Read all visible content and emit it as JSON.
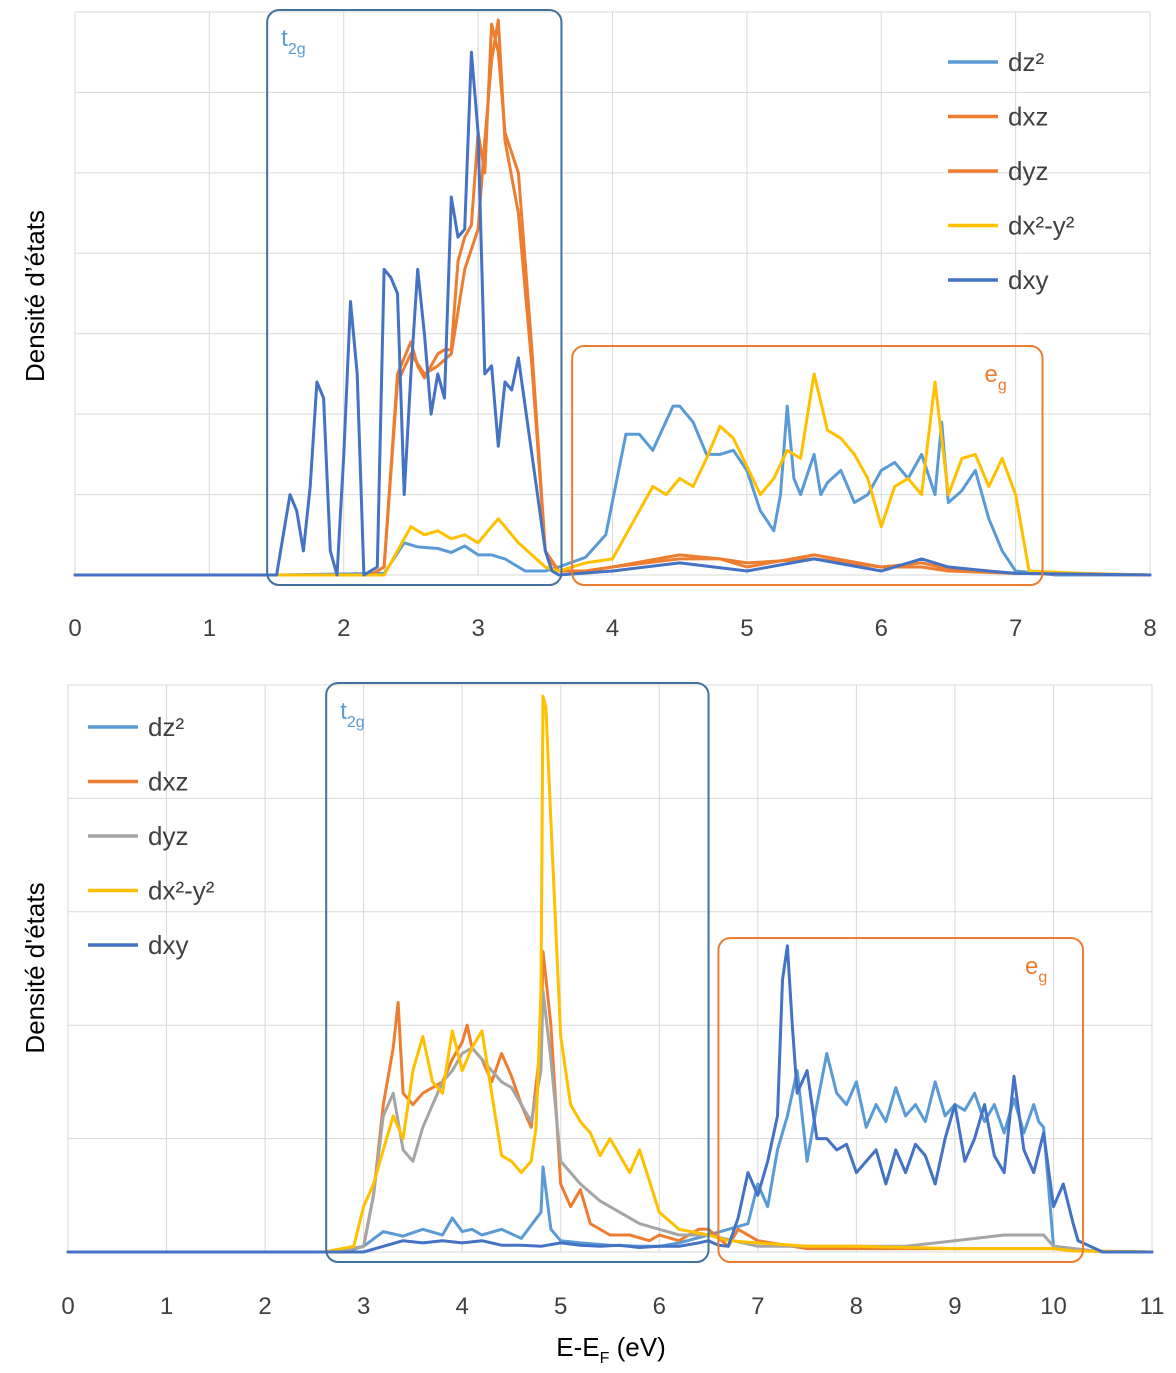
{
  "colors": {
    "dz2": "#5B9BD5",
    "dxz": "#ED7D31",
    "dyz_top": "#ED7D31",
    "dyz_bottom": "#A5A5A5",
    "dx2y2": "#FFC000",
    "dxy": "#4472C4",
    "box_t2g": "#41719C",
    "box_eg": "#ED7D31",
    "grid": "#D9D9D9"
  },
  "xlabel_main": "E-E",
  "xlabel_sub": "F",
  "xlabel_unit": " (eV)",
  "chart_data": [
    {
      "type": "line",
      "ylabel": "Densité d’états",
      "xlim": [
        0,
        8
      ],
      "x_ticks": [
        "0",
        "1",
        "2",
        "3",
        "4",
        "5",
        "6",
        "7",
        "8"
      ],
      "ylim": [
        0,
        7
      ],
      "y_gridlines": 7,
      "y_tick_labels": "none",
      "grid": "on",
      "legend_position": "top-right",
      "boxes": [
        {
          "label": "t",
          "sub": "2g",
          "x_range": [
            1.43,
            3.62
          ],
          "label_position": "top-left",
          "color": "box_t2g"
        },
        {
          "label": "e",
          "sub": "g",
          "x_range": [
            3.7,
            7.2
          ],
          "label_position": "top-right",
          "color": "box_eg"
        }
      ],
      "series": [
        {
          "name": "dz²",
          "color": "dz2",
          "x": [
            0,
            1.5,
            2.3,
            2.45,
            2.55,
            2.7,
            2.8,
            2.9,
            3.0,
            3.1,
            3.2,
            3.35,
            3.5,
            3.6,
            3.8,
            3.95,
            4.1,
            4.2,
            4.3,
            4.45,
            4.5,
            4.6,
            4.7,
            4.8,
            4.9,
            5.0,
            5.1,
            5.2,
            5.25,
            5.3,
            5.35,
            5.4,
            5.45,
            5.5,
            5.55,
            5.6,
            5.7,
            5.8,
            5.9,
            6.0,
            6.1,
            6.2,
            6.3,
            6.4,
            6.45,
            6.5,
            6.6,
            6.7,
            6.8,
            6.9,
            7.0,
            7.3,
            8
          ],
          "y": [
            0,
            0,
            0.02,
            0.4,
            0.35,
            0.33,
            0.28,
            0.36,
            0.25,
            0.25,
            0.2,
            0.05,
            0.05,
            0.1,
            0.22,
            0.5,
            1.75,
            1.75,
            1.55,
            2.1,
            2.1,
            1.9,
            1.5,
            1.5,
            1.55,
            1.3,
            0.8,
            0.55,
            1.0,
            2.1,
            1.2,
            1.0,
            1.25,
            1.5,
            1.0,
            1.15,
            1.3,
            0.9,
            1.0,
            1.3,
            1.4,
            1.2,
            1.5,
            1.0,
            1.9,
            0.9,
            1.05,
            1.3,
            0.7,
            0.3,
            0.05,
            0,
            0
          ]
        },
        {
          "name": "dxz",
          "color": "dxz",
          "x": [
            0,
            2.2,
            2.3,
            2.4,
            2.5,
            2.55,
            2.6,
            2.7,
            2.75,
            2.8,
            2.85,
            2.9,
            2.95,
            3.0,
            3.05,
            3.1,
            3.15,
            3.2,
            3.3,
            3.4,
            3.5,
            3.55,
            3.6,
            3.8,
            4.0,
            4.5,
            4.8,
            5.0,
            5.5,
            6.0,
            6.3,
            6.5,
            7.0,
            8
          ],
          "y": [
            0,
            0,
            0.1,
            2.5,
            2.9,
            2.6,
            2.45,
            2.75,
            2.8,
            2.8,
            3.9,
            4.2,
            4.35,
            5.5,
            5.0,
            6.85,
            6.5,
            5.5,
            5.0,
            2.8,
            0.3,
            0.15,
            0.05,
            0.05,
            0.1,
            0.25,
            0.2,
            0.15,
            0.2,
            0.1,
            0.15,
            0.08,
            0.02,
            0
          ]
        },
        {
          "name": "dyz",
          "color": "dyz_top",
          "x": [
            0,
            2.2,
            2.3,
            2.4,
            2.5,
            2.6,
            2.7,
            2.8,
            2.9,
            3.0,
            3.05,
            3.1,
            3.15,
            3.2,
            3.3,
            3.4,
            3.5,
            3.6,
            3.8,
            4.0,
            4.5,
            4.8,
            5.0,
            5.5,
            6.0,
            6.3,
            6.5,
            7.0,
            8
          ],
          "y": [
            0,
            0,
            0.1,
            2.4,
            2.75,
            2.5,
            2.6,
            2.75,
            3.8,
            4.3,
            5.4,
            6.4,
            6.9,
            5.4,
            4.5,
            2.6,
            0.3,
            0.05,
            0.05,
            0.1,
            0.2,
            0.2,
            0.1,
            0.25,
            0.1,
            0.1,
            0.05,
            0.02,
            0
          ]
        },
        {
          "name": "dx²-y²",
          "color": "dx2y2",
          "x": [
            0,
            2.3,
            2.4,
            2.5,
            2.6,
            2.7,
            2.8,
            2.9,
            3.0,
            3.1,
            3.15,
            3.2,
            3.3,
            3.5,
            3.6,
            3.8,
            4.0,
            4.2,
            4.3,
            4.4,
            4.5,
            4.6,
            4.7,
            4.8,
            4.9,
            5.0,
            5.1,
            5.2,
            5.3,
            5.4,
            5.5,
            5.6,
            5.7,
            5.8,
            5.9,
            6.0,
            6.1,
            6.2,
            6.3,
            6.4,
            6.5,
            6.6,
            6.7,
            6.8,
            6.9,
            7.0,
            7.1,
            7.5,
            8
          ],
          "y": [
            0,
            0,
            0.3,
            0.6,
            0.5,
            0.55,
            0.45,
            0.5,
            0.4,
            0.6,
            0.7,
            0.6,
            0.4,
            0.1,
            0.05,
            0.15,
            0.2,
            0.8,
            1.1,
            1.0,
            1.2,
            1.1,
            1.45,
            1.85,
            1.7,
            1.35,
            1.0,
            1.2,
            1.55,
            1.45,
            2.5,
            1.8,
            1.7,
            1.5,
            1.2,
            0.6,
            1.1,
            1.2,
            1.0,
            2.4,
            1.0,
            1.45,
            1.5,
            1.1,
            1.45,
            1.0,
            0.05,
            0.02,
            0
          ]
        },
        {
          "name": "dxy",
          "color": "dxy",
          "x": [
            0,
            1.5,
            1.55,
            1.6,
            1.65,
            1.7,
            1.75,
            1.8,
            1.85,
            1.9,
            1.95,
            2.0,
            2.05,
            2.1,
            2.15,
            2.2,
            2.25,
            2.3,
            2.35,
            2.4,
            2.45,
            2.5,
            2.55,
            2.6,
            2.65,
            2.7,
            2.75,
            2.8,
            2.85,
            2.9,
            2.95,
            3.0,
            3.05,
            3.1,
            3.15,
            3.2,
            3.25,
            3.3,
            3.4,
            3.5,
            3.55,
            3.6,
            4.0,
            4.5,
            5.0,
            5.5,
            6.0,
            6.3,
            6.5,
            6.8,
            7.0,
            8
          ],
          "y": [
            0,
            0,
            0.5,
            1.0,
            0.8,
            0.3,
            1.1,
            2.4,
            2.2,
            0.3,
            0.0,
            1.5,
            3.4,
            2.5,
            0.0,
            0.05,
            0.1,
            3.8,
            3.7,
            3.5,
            1.0,
            2.5,
            3.8,
            3.0,
            2.0,
            2.5,
            2.2,
            4.7,
            4.2,
            4.3,
            6.5,
            5.5,
            2.5,
            2.6,
            1.6,
            2.4,
            2.3,
            2.7,
            1.5,
            0.3,
            0.05,
            0.0,
            0.05,
            0.15,
            0.05,
            0.2,
            0.05,
            0.2,
            0.1,
            0.05,
            0.02,
            0
          ]
        }
      ]
    },
    {
      "type": "line",
      "ylabel": "Densité d'états",
      "xlim": [
        0,
        11
      ],
      "x_ticks": [
        "0",
        "1",
        "2",
        "3",
        "4",
        "5",
        "6",
        "7",
        "8",
        "9",
        "10",
        "11"
      ],
      "ylim": [
        0,
        5
      ],
      "y_gridlines": 5,
      "y_tick_labels": "none",
      "grid": "on",
      "legend_position": "top-left",
      "boxes": [
        {
          "label": "t",
          "sub": "2g",
          "x_range": [
            2.62,
            6.5
          ],
          "label_position": "top-left",
          "color": "box_t2g"
        },
        {
          "label": "e",
          "sub": "g",
          "x_range": [
            6.6,
            10.3
          ],
          "label_position": "top-right",
          "color": "box_eg"
        }
      ],
      "series": [
        {
          "name": "dz²",
          "color": "dz2",
          "x": [
            0,
            2.8,
            3.0,
            3.2,
            3.4,
            3.6,
            3.8,
            3.9,
            4.0,
            4.1,
            4.2,
            4.4,
            4.6,
            4.8,
            4.82,
            4.9,
            5.0,
            5.2,
            5.5,
            5.8,
            6.0,
            6.2,
            6.5,
            6.7,
            6.9,
            7.0,
            7.1,
            7.2,
            7.3,
            7.4,
            7.5,
            7.6,
            7.7,
            7.8,
            7.9,
            8.0,
            8.1,
            8.2,
            8.3,
            8.4,
            8.5,
            8.6,
            8.7,
            8.8,
            8.9,
            9.0,
            9.1,
            9.2,
            9.3,
            9.4,
            9.5,
            9.6,
            9.7,
            9.8,
            9.85,
            9.9,
            10.0,
            10.5,
            11
          ],
          "y": [
            0,
            0,
            0.05,
            0.18,
            0.14,
            0.2,
            0.15,
            0.3,
            0.18,
            0.2,
            0.15,
            0.2,
            0.12,
            0.35,
            0.75,
            0.2,
            0.1,
            0.08,
            0.06,
            0.05,
            0.05,
            0.08,
            0.15,
            0.2,
            0.25,
            0.6,
            0.4,
            0.9,
            1.2,
            1.6,
            0.8,
            1.3,
            1.75,
            1.4,
            1.3,
            1.5,
            1.1,
            1.3,
            1.15,
            1.45,
            1.2,
            1.3,
            1.15,
            1.5,
            1.2,
            1.3,
            1.25,
            1.4,
            1.15,
            1.3,
            1.05,
            1.35,
            1.05,
            1.3,
            1.15,
            1.1,
            0.05,
            0,
            0
          ]
        },
        {
          "name": "dxz",
          "color": "dxz",
          "x": [
            0,
            2.7,
            3.0,
            3.1,
            3.2,
            3.3,
            3.35,
            3.4,
            3.5,
            3.6,
            3.7,
            3.8,
            3.9,
            4.0,
            4.05,
            4.1,
            4.2,
            4.3,
            4.4,
            4.5,
            4.6,
            4.7,
            4.8,
            4.82,
            4.9,
            5.0,
            5.1,
            5.2,
            5.3,
            5.5,
            5.7,
            5.9,
            6.0,
            6.2,
            6.4,
            6.5,
            6.7,
            6.8,
            7.0,
            7.5,
            8.0,
            9.0,
            10.0,
            10.2,
            11
          ],
          "y": [
            0,
            0,
            0.05,
            0.5,
            1.3,
            1.8,
            2.2,
            1.4,
            1.3,
            1.4,
            1.45,
            1.5,
            1.7,
            1.85,
            2.0,
            1.8,
            1.7,
            1.5,
            1.75,
            1.55,
            1.3,
            1.1,
            1.85,
            2.65,
            2.0,
            0.6,
            0.4,
            0.55,
            0.25,
            0.15,
            0.15,
            0.1,
            0.15,
            0.1,
            0.2,
            0.2,
            0.05,
            0.2,
            0.1,
            0.03,
            0.03,
            0.03,
            0.03,
            0.01,
            0
          ]
        },
        {
          "name": "dyz",
          "color": "dyz_bottom",
          "x": [
            0,
            2.7,
            3.0,
            3.1,
            3.2,
            3.3,
            3.4,
            3.5,
            3.6,
            3.7,
            3.8,
            3.9,
            4.0,
            4.1,
            4.2,
            4.3,
            4.4,
            4.5,
            4.6,
            4.7,
            4.8,
            4.82,
            4.9,
            5.0,
            5.1,
            5.2,
            5.4,
            5.6,
            5.8,
            6.0,
            6.2,
            6.5,
            7.0,
            7.5,
            8.0,
            8.5,
            9.0,
            9.5,
            9.8,
            9.9,
            10.0,
            10.5,
            11
          ],
          "y": [
            0,
            0,
            0.05,
            0.5,
            1.2,
            1.4,
            0.9,
            0.8,
            1.1,
            1.3,
            1.5,
            1.6,
            1.75,
            1.8,
            1.7,
            1.6,
            1.5,
            1.45,
            1.3,
            1.15,
            1.6,
            2.3,
            1.7,
            0.8,
            0.7,
            0.6,
            0.45,
            0.35,
            0.25,
            0.2,
            0.15,
            0.15,
            0.05,
            0.05,
            0.05,
            0.05,
            0.1,
            0.15,
            0.15,
            0.15,
            0.05,
            0.0,
            0
          ]
        },
        {
          "name": "dx²-y²",
          "color": "dx2y2",
          "x": [
            0,
            2.6,
            2.9,
            3.0,
            3.1,
            3.2,
            3.3,
            3.4,
            3.5,
            3.6,
            3.7,
            3.8,
            3.9,
            4.0,
            4.1,
            4.2,
            4.3,
            4.4,
            4.5,
            4.6,
            4.7,
            4.75,
            4.8,
            4.82,
            4.85,
            4.9,
            5.0,
            5.1,
            5.2,
            5.3,
            5.4,
            5.5,
            5.6,
            5.7,
            5.8,
            6.0,
            6.2,
            6.5,
            6.7,
            7.0,
            7.5,
            8.0,
            9.0,
            10.0,
            10.2,
            11
          ],
          "y": [
            0,
            0,
            0.05,
            0.4,
            0.6,
            0.9,
            1.2,
            1.0,
            1.6,
            1.9,
            1.5,
            1.4,
            1.95,
            1.6,
            1.8,
            1.95,
            1.4,
            0.85,
            0.8,
            0.7,
            0.8,
            1.1,
            2.3,
            4.9,
            4.8,
            3.8,
            1.9,
            1.3,
            1.15,
            1.05,
            0.85,
            1.0,
            0.85,
            0.7,
            0.9,
            0.35,
            0.2,
            0.15,
            0.1,
            0.08,
            0.05,
            0.05,
            0.03,
            0.03,
            0.01,
            0
          ]
        },
        {
          "name": "dxy",
          "color": "dxy",
          "x": [
            0,
            3.0,
            3.2,
            3.4,
            3.6,
            3.8,
            4.0,
            4.2,
            4.4,
            4.6,
            4.8,
            5.0,
            5.2,
            5.4,
            5.6,
            5.8,
            6.0,
            6.2,
            6.4,
            6.5,
            6.6,
            6.7,
            6.8,
            6.9,
            7.0,
            7.1,
            7.2,
            7.25,
            7.3,
            7.35,
            7.4,
            7.5,
            7.6,
            7.7,
            7.8,
            7.9,
            8.0,
            8.2,
            8.3,
            8.4,
            8.5,
            8.6,
            8.7,
            8.8,
            8.9,
            9.0,
            9.1,
            9.2,
            9.3,
            9.4,
            9.5,
            9.6,
            9.7,
            9.8,
            9.9,
            10.0,
            10.1,
            10.2,
            10.25,
            10.5,
            11
          ],
          "y": [
            0,
            0.0,
            0.05,
            0.1,
            0.08,
            0.1,
            0.08,
            0.1,
            0.06,
            0.06,
            0.05,
            0.08,
            0.06,
            0.05,
            0.06,
            0.04,
            0.05,
            0.05,
            0.08,
            0.1,
            0.06,
            0.05,
            0.3,
            0.7,
            0.5,
            0.8,
            1.2,
            2.4,
            2.7,
            2.0,
            1.4,
            1.6,
            1.0,
            1.0,
            0.9,
            0.95,
            0.7,
            0.9,
            0.6,
            0.9,
            0.7,
            0.95,
            0.85,
            0.6,
            1.0,
            1.3,
            0.8,
            1.0,
            1.3,
            0.85,
            0.7,
            1.55,
            0.9,
            0.7,
            1.05,
            0.4,
            0.6,
            0.25,
            0.1,
            0.0,
            0
          ]
        }
      ]
    }
  ]
}
